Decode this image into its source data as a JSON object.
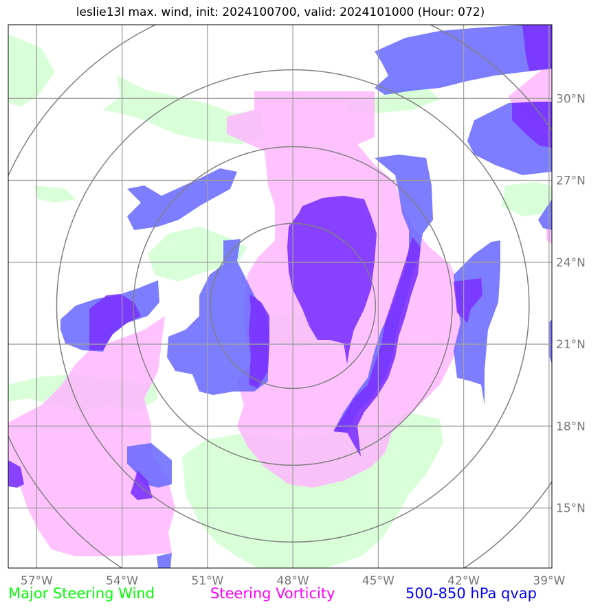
{
  "title": "leslie13l max. wind, init: 2024100700, valid: 2024101000 (Hour: 072)",
  "map": {
    "lon_ticks": [
      {
        "value": -57,
        "label": "57°W"
      },
      {
        "value": -54,
        "label": "54°W"
      },
      {
        "value": -51,
        "label": "51°W"
      },
      {
        "value": -48,
        "label": "48°W"
      },
      {
        "value": -45,
        "label": "45°W"
      },
      {
        "value": -42,
        "label": "42°W"
      },
      {
        "value": -39,
        "label": "39°W"
      }
    ],
    "lat_ticks": [
      {
        "value": 30,
        "label": "30°N"
      },
      {
        "value": 27,
        "label": "27°N"
      },
      {
        "value": 24,
        "label": "24°N"
      },
      {
        "value": 21,
        "label": "21°N"
      },
      {
        "value": 18,
        "label": "18°N"
      },
      {
        "value": 15,
        "label": "15°N"
      }
    ],
    "extent": {
      "lon_min": -58,
      "lon_max": -38.9,
      "lat_min": 12.8,
      "lat_max": 32.7
    },
    "center": {
      "lon": -48,
      "lat": 22.4
    },
    "range_rings_deg": [
      2.9,
      5.6,
      8.3,
      11.0
    ],
    "colors": {
      "steering_wind": "#ccffcc",
      "steering_vorticity": "#ffb3ff",
      "qvap": "#6666ff",
      "qvap_strong": "#7a33ff",
      "grid": "#a0a0a0",
      "ring": "#808080"
    }
  },
  "legend": {
    "wind": {
      "label": "Major Steering Wind",
      "color": "#00ff00"
    },
    "vorticity": {
      "label": "Steering Vorticity",
      "color": "#ff00ff"
    },
    "qvap": {
      "label": "500-850 hPa qvap",
      "color": "#0000ff"
    }
  }
}
